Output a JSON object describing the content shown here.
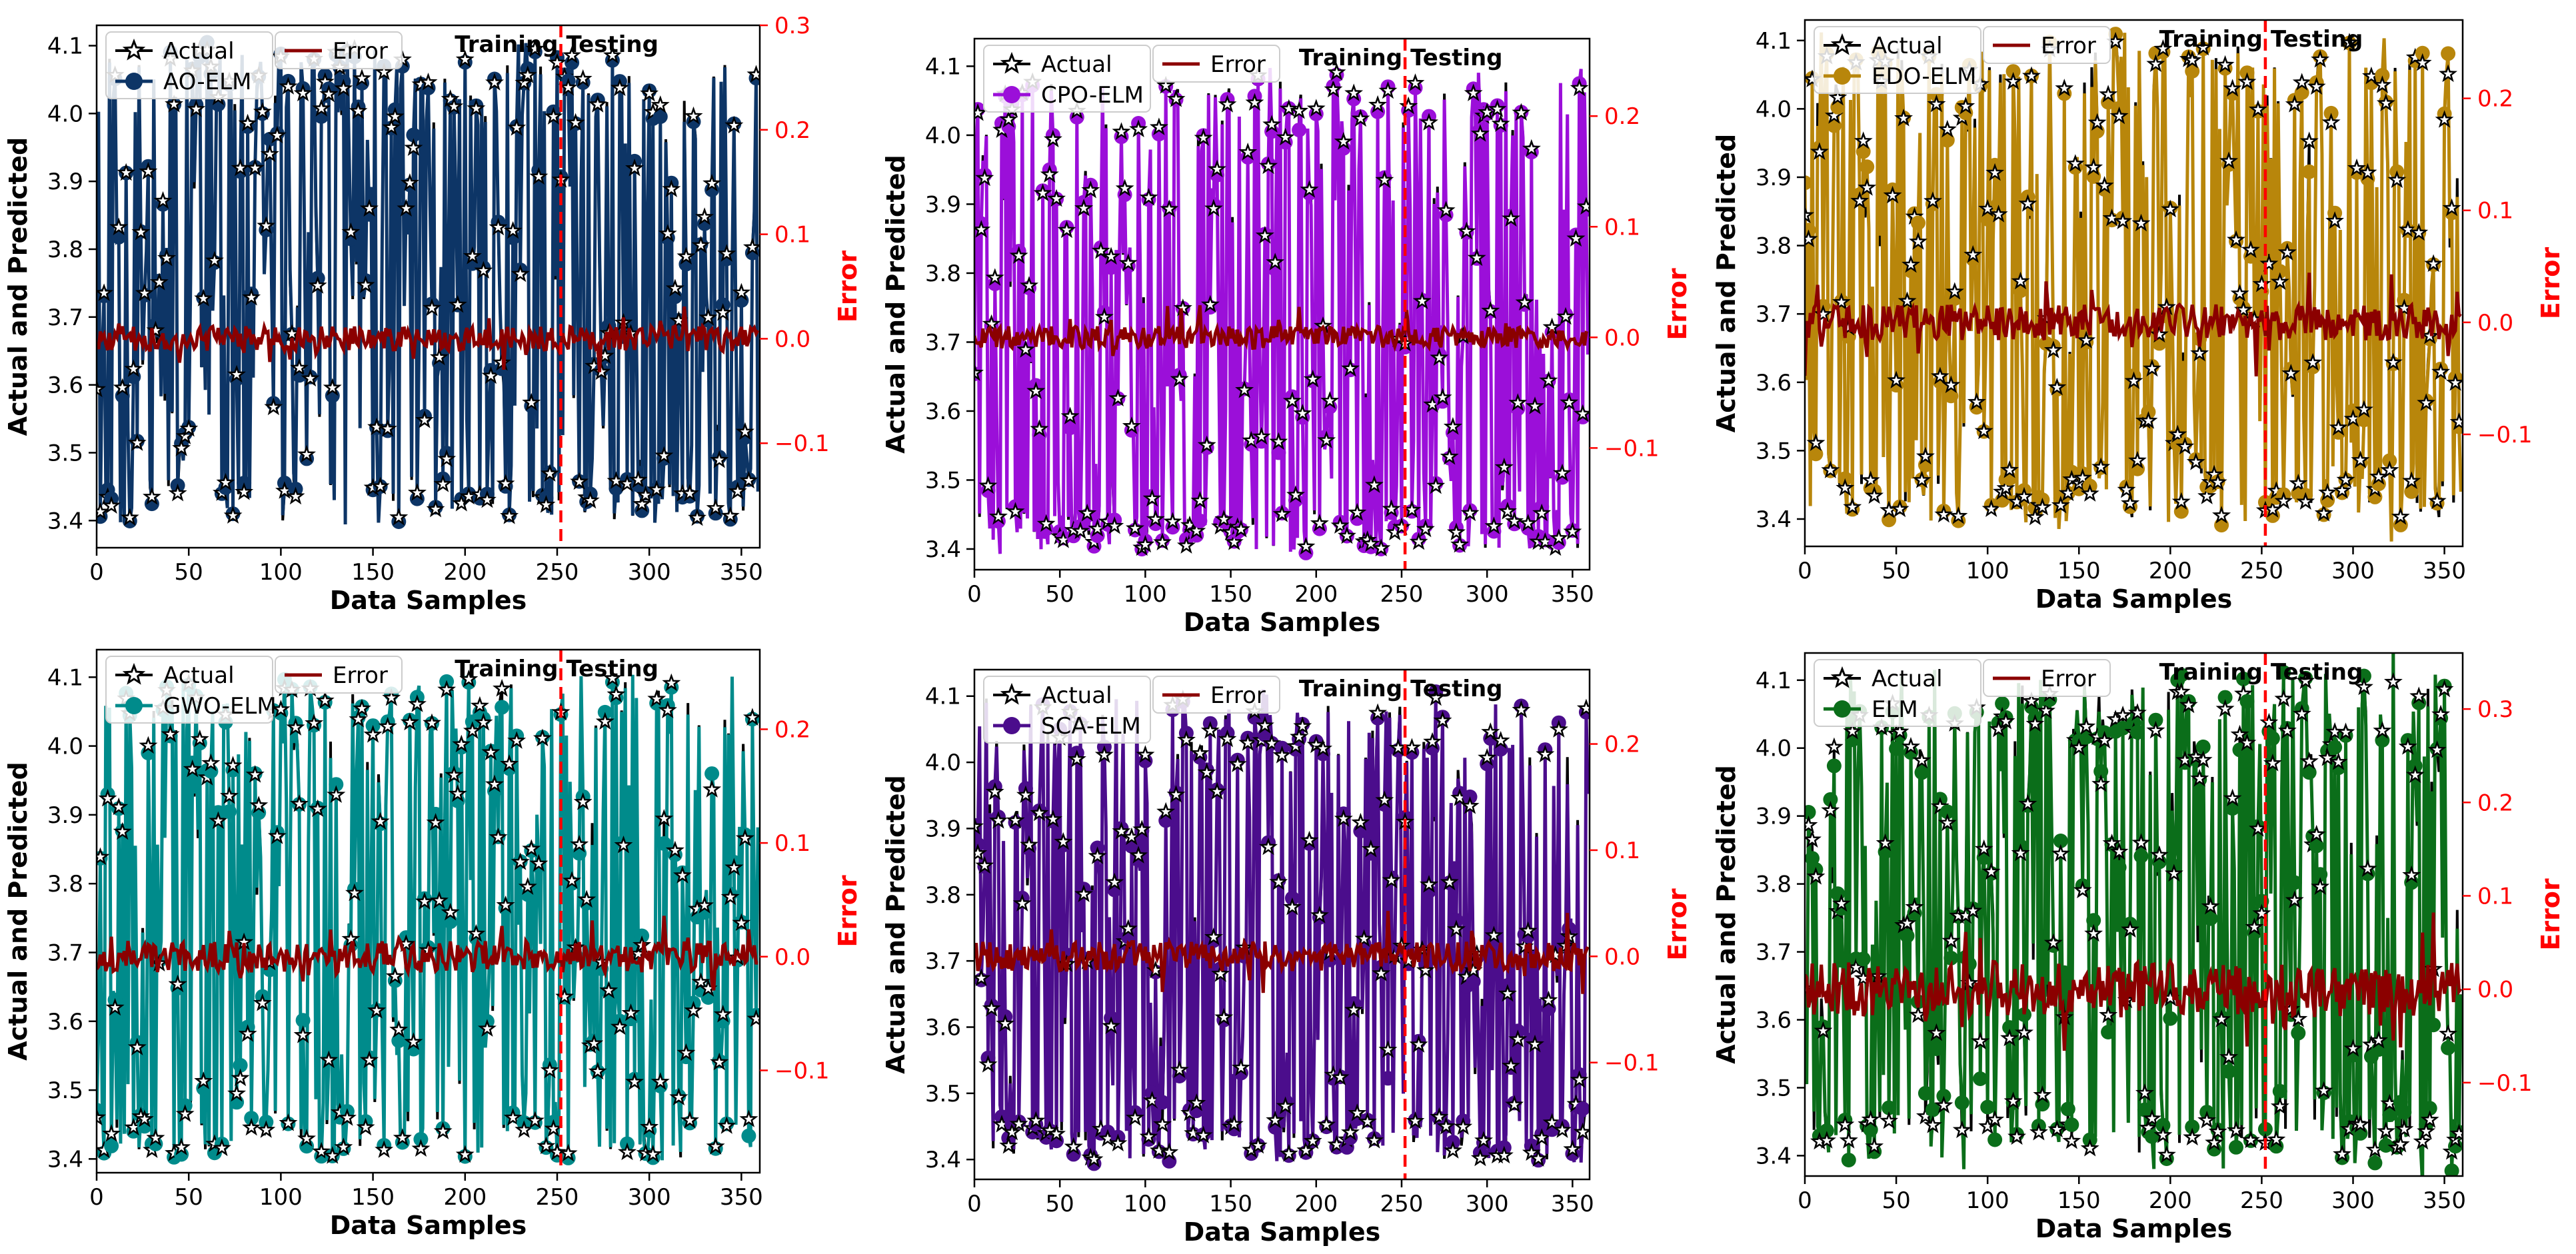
{
  "figure": {
    "xlabel": "Data Samples",
    "ylabel": "Actual and Predicted",
    "y2label": "Error",
    "train_label": "Training",
    "test_label": "Testing",
    "actual_label": "Actual",
    "error_label": "Error",
    "colors": {
      "actual": "#000000",
      "error": "#8b0000",
      "split": "#ff0000",
      "y2axis": "#ff0000"
    }
  },
  "chart_data": [
    {
      "type": "line",
      "title": "",
      "model": "AO-ELM",
      "color": "#0d3566",
      "xlabel": "Data Samples",
      "ylabel": "Actual and Predicted",
      "y2label": "Error",
      "xlim": [
        0,
        360
      ],
      "ylim": [
        3.36,
        4.13
      ],
      "y2lim": [
        -0.2,
        0.3
      ],
      "xticks": [
        0,
        50,
        100,
        150,
        200,
        250,
        300,
        350
      ],
      "yticks": [
        3.4,
        3.5,
        3.6,
        3.7,
        3.8,
        3.9,
        4.0,
        4.1
      ],
      "y2ticks": [
        -0.1,
        0.0,
        0.1,
        0.2,
        0.3
      ],
      "split_x": 252,
      "n_samples": 360,
      "seed": 11,
      "error_amp": 0.012
    },
    {
      "type": "line",
      "title": "",
      "model": "CPO-ELM",
      "color": "#9b0fd9",
      "xlabel": "Data Samples",
      "ylabel": "Actual and Predicted",
      "y2label": "Error",
      "xlim": [
        0,
        360
      ],
      "ylim": [
        3.37,
        4.14
      ],
      "y2lim": [
        -0.21,
        0.27
      ],
      "xticks": [
        0,
        50,
        100,
        150,
        200,
        250,
        300,
        350
      ],
      "yticks": [
        3.4,
        3.5,
        3.6,
        3.7,
        3.8,
        3.9,
        4.0,
        4.1
      ],
      "y2ticks": [
        -0.1,
        0.0,
        0.1,
        0.2
      ],
      "split_x": 252,
      "n_samples": 360,
      "seed": 23,
      "error_amp": 0.01
    },
    {
      "type": "line",
      "title": "",
      "model": "EDO-ELM",
      "color": "#b8860b",
      "xlabel": "Data Samples",
      "ylabel": "Actual and Predicted",
      "y2label": "Error",
      "xlim": [
        0,
        360
      ],
      "ylim": [
        3.36,
        4.13
      ],
      "y2lim": [
        -0.2,
        0.27
      ],
      "xticks": [
        0,
        50,
        100,
        150,
        200,
        250,
        300,
        350
      ],
      "yticks": [
        3.4,
        3.5,
        3.6,
        3.7,
        3.8,
        3.9,
        4.0,
        4.1
      ],
      "y2ticks": [
        -0.1,
        0.0,
        0.1,
        0.2
      ],
      "split_x": 252,
      "n_samples": 360,
      "seed": 37,
      "error_amp": 0.016
    },
    {
      "type": "line",
      "title": "",
      "model": "GWO-ELM",
      "color": "#008b8b",
      "xlabel": "Data Samples",
      "ylabel": "Actual and Predicted",
      "y2label": "Error",
      "xlim": [
        0,
        360
      ],
      "ylim": [
        3.38,
        4.14
      ],
      "y2lim": [
        -0.19,
        0.27
      ],
      "xticks": [
        0,
        50,
        100,
        150,
        200,
        250,
        300,
        350
      ],
      "yticks": [
        3.4,
        3.5,
        3.6,
        3.7,
        3.8,
        3.9,
        4.0,
        4.1
      ],
      "y2ticks": [
        -0.1,
        0.0,
        0.1,
        0.2
      ],
      "split_x": 252,
      "n_samples": 360,
      "seed": 53,
      "error_amp": 0.014
    },
    {
      "type": "line",
      "title": "",
      "model": "SCA-ELM",
      "color": "#4b0d8c",
      "xlabel": "Data Samples",
      "ylabel": "Actual and Predicted",
      "y2label": "Error",
      "xlim": [
        0,
        360
      ],
      "ylim": [
        3.37,
        4.14
      ],
      "y2lim": [
        -0.21,
        0.27
      ],
      "xticks": [
        0,
        50,
        100,
        150,
        200,
        250,
        300,
        350
      ],
      "yticks": [
        3.4,
        3.5,
        3.6,
        3.7,
        3.8,
        3.9,
        4.0,
        4.1
      ],
      "y2ticks": [
        -0.1,
        0.0,
        0.1,
        0.2
      ],
      "split_x": 252,
      "n_samples": 360,
      "seed": 71,
      "error_amp": 0.014
    },
    {
      "type": "line",
      "title": "",
      "model": "ELM",
      "color": "#0b6e1a",
      "xlabel": "Data Samples",
      "ylabel": "Actual and Predicted",
      "y2label": "Error",
      "xlim": [
        0,
        360
      ],
      "ylim": [
        3.37,
        4.14
      ],
      "y2lim": [
        -0.2,
        0.36
      ],
      "xticks": [
        0,
        50,
        100,
        150,
        200,
        250,
        300,
        350
      ],
      "yticks": [
        3.4,
        3.5,
        3.6,
        3.7,
        3.8,
        3.9,
        4.0,
        4.1
      ],
      "y2ticks": [
        -0.1,
        0.0,
        0.1,
        0.2,
        0.3
      ],
      "split_x": 252,
      "n_samples": 360,
      "seed": 89,
      "error_amp": 0.03
    }
  ]
}
